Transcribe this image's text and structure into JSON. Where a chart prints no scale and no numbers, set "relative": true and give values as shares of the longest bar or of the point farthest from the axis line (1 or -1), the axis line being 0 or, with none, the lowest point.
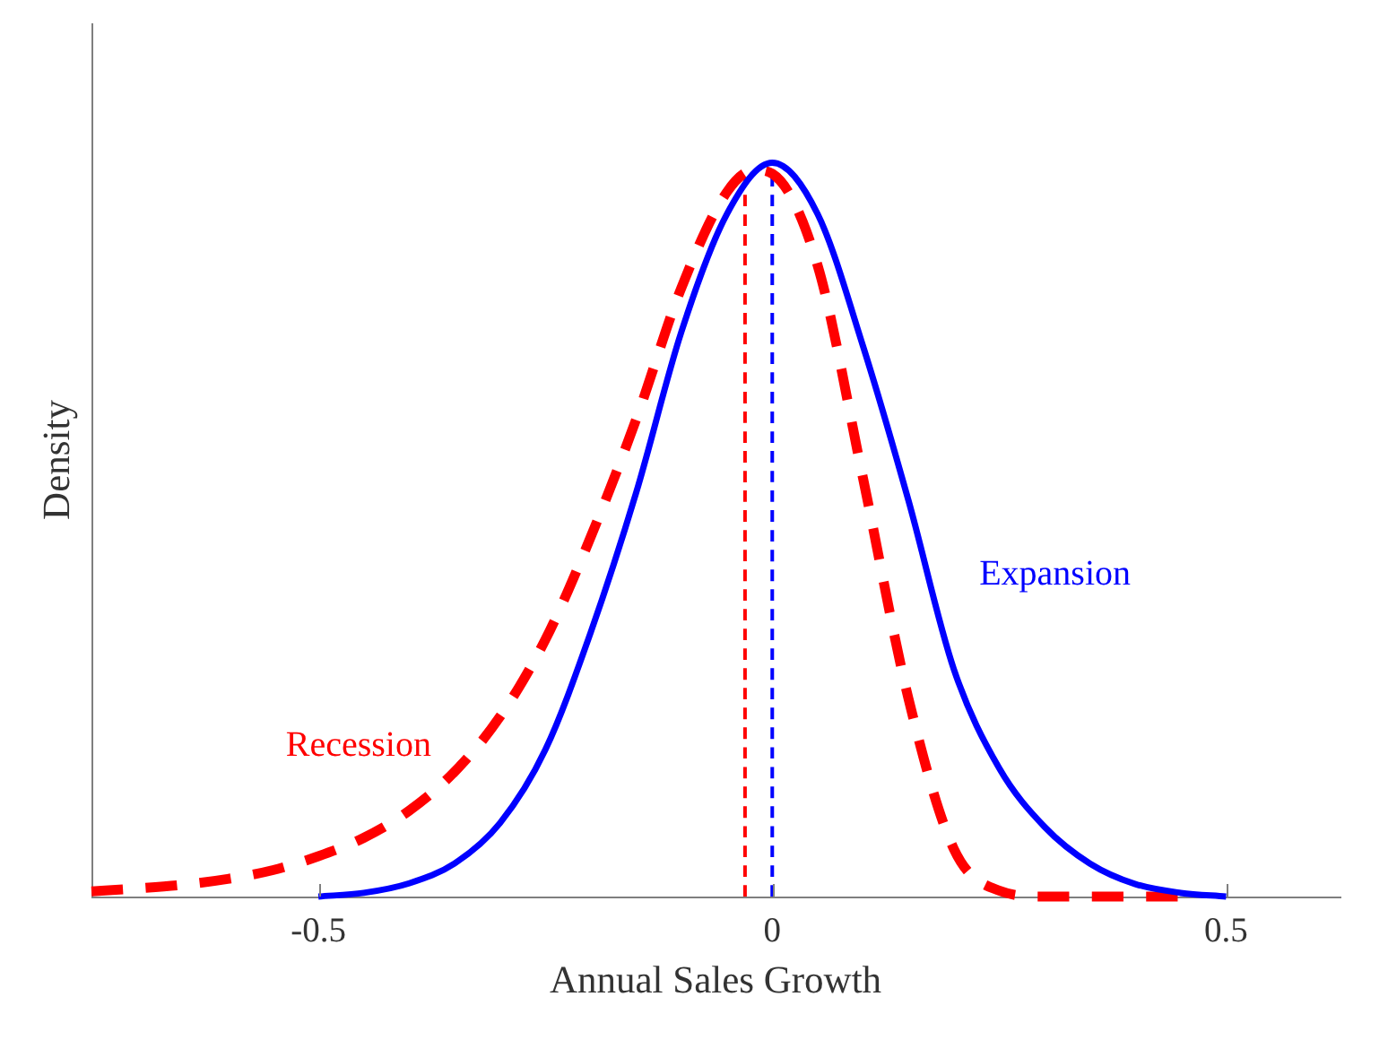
{
  "chart_data": {
    "type": "line",
    "xlabel": "Annual Sales Growth",
    "ylabel": "Density",
    "relative": true,
    "tick_labels": "x",
    "grid": false,
    "legend": false,
    "marker": "none",
    "xlim": [
      -0.75,
      0.625
    ],
    "xticks": [
      -0.5,
      0,
      0.5
    ],
    "series": [
      {
        "name": "Expansion",
        "color": "#0000ff",
        "line_style": "solid",
        "x": [
          -0.5,
          -0.45,
          -0.4,
          -0.35,
          -0.3,
          -0.25,
          -0.2,
          -0.15,
          -0.1,
          -0.05,
          0,
          0.05,
          0.1,
          0.15,
          0.2,
          0.25,
          0.3,
          0.35,
          0.4,
          0.45,
          0.5
        ],
        "values": [
          0,
          0.005,
          0.018,
          0.045,
          0.1,
          0.2,
          0.36,
          0.55,
          0.77,
          0.93,
          1,
          0.93,
          0.75,
          0.54,
          0.31,
          0.175,
          0.095,
          0.045,
          0.017,
          0.005,
          0
        ]
      },
      {
        "name": "Recession",
        "color": "#ff0000",
        "line_style": "dashed",
        "x": [
          -0.75,
          -0.7,
          -0.65,
          -0.6,
          -0.55,
          -0.5,
          -0.45,
          -0.4,
          -0.35,
          -0.3,
          -0.25,
          -0.2,
          -0.15,
          -0.1,
          -0.05,
          -0.02,
          0,
          0.05,
          0.1,
          0.15,
          0.2,
          0.25,
          0.3,
          0.35,
          0.4,
          0.45
        ],
        "values": [
          0.007,
          0.011,
          0.016,
          0.024,
          0.036,
          0.055,
          0.08,
          0.117,
          0.17,
          0.245,
          0.35,
          0.49,
          0.65,
          0.83,
          0.96,
          0.99,
          0.985,
          0.86,
          0.57,
          0.27,
          0.065,
          0.008,
          0,
          0,
          0,
          0
        ]
      },
      {
        "color": "#0000ff",
        "line_style": "dashed",
        "x": [
          0,
          0
        ],
        "values": [
          0,
          0.99
        ]
      },
      {
        "color": "#ff0000",
        "line_style": "dashed",
        "x": [
          -0.03,
          -0.03
        ],
        "values": [
          0,
          0.98
        ]
      }
    ]
  }
}
